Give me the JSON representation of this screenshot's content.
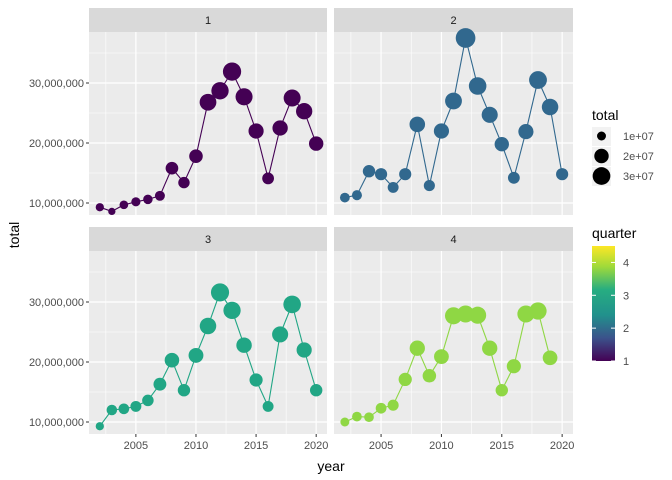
{
  "chart_data": {
    "type": "scatter",
    "xlabel": "year",
    "ylabel": "total",
    "xlim": [
      2001.1,
      2020.9
    ],
    "ylim": [
      8000000,
      38500000
    ],
    "xticks": [
      2005,
      2010,
      2015,
      2020
    ],
    "xtick_labels": [
      "2005",
      "2010",
      "2015",
      "2020"
    ],
    "yticks": [
      10000000,
      20000000,
      30000000
    ],
    "ytick_labels": [
      "10,000,000",
      "20,000,000",
      "30,000,000"
    ],
    "grid": true,
    "point_size_variable": "total",
    "colors": {
      "panel_bg": "#ebebeb",
      "strip_bg": "#d9d9d9",
      "grid": "#ffffff",
      "text": "#4d4d4d",
      "title_text": "#000000",
      "q1": "#440154",
      "q2": "#31688e",
      "q3": "#21a685",
      "q4": "#8fd744"
    },
    "series": [
      {
        "name": "1",
        "x": [
          2002,
          2003,
          2004,
          2005,
          2006,
          2007,
          2008,
          2009,
          2010,
          2011,
          2012,
          2013,
          2014,
          2015,
          2016,
          2017,
          2018,
          2019,
          2020
        ],
        "values": [
          9300000,
          8600000,
          9700000,
          10200000,
          10600000,
          11200000,
          15800000,
          13400000,
          17800000,
          26800000,
          28700000,
          31900000,
          27700000,
          22000000,
          14100000,
          22500000,
          27500000,
          25300000,
          19900000
        ]
      },
      {
        "name": "2",
        "x": [
          2002,
          2003,
          2004,
          2005,
          2006,
          2007,
          2008,
          2009,
          2010,
          2011,
          2012,
          2013,
          2014,
          2015,
          2016,
          2017,
          2018,
          2019,
          2020
        ],
        "values": [
          10900000,
          11300000,
          15300000,
          14800000,
          12600000,
          14800000,
          23100000,
          12900000,
          22000000,
          27000000,
          37500000,
          29500000,
          24700000,
          19800000,
          14200000,
          21900000,
          30500000,
          26000000,
          14800000
        ]
      },
      {
        "name": "3",
        "x": [
          2002,
          2003,
          2004,
          2005,
          2006,
          2007,
          2008,
          2009,
          2010,
          2011,
          2012,
          2013,
          2014,
          2015,
          2016,
          2017,
          2018,
          2019,
          2020
        ],
        "values": [
          9300000,
          12000000,
          12200000,
          12600000,
          13600000,
          16300000,
          20300000,
          15300000,
          21100000,
          26000000,
          31600000,
          28600000,
          22800000,
          17000000,
          12600000,
          24600000,
          29600000,
          22000000,
          15300000
        ]
      },
      {
        "name": "4",
        "x": [
          2002,
          2003,
          2004,
          2005,
          2006,
          2007,
          2008,
          2009,
          2010,
          2011,
          2012,
          2013,
          2014,
          2015,
          2016,
          2017,
          2018,
          2019
        ],
        "values": [
          10000000,
          10900000,
          10800000,
          12300000,
          12800000,
          17100000,
          22300000,
          17700000,
          20900000,
          27700000,
          28000000,
          27800000,
          22300000,
          15300000,
          19300000,
          28000000,
          28500000,
          20700000
        ]
      }
    ],
    "legend_size": {
      "title": "total",
      "labels": [
        "1e+07",
        "2e+07",
        "3e+07"
      ],
      "values": [
        10000000,
        20000000,
        30000000
      ]
    },
    "legend_color": {
      "title": "quarter",
      "labels": [
        "1",
        "2",
        "3",
        "4"
      ],
      "values": [
        1,
        2,
        3,
        4
      ],
      "range": [
        1,
        4.5
      ]
    },
    "legend_placement": "right"
  }
}
